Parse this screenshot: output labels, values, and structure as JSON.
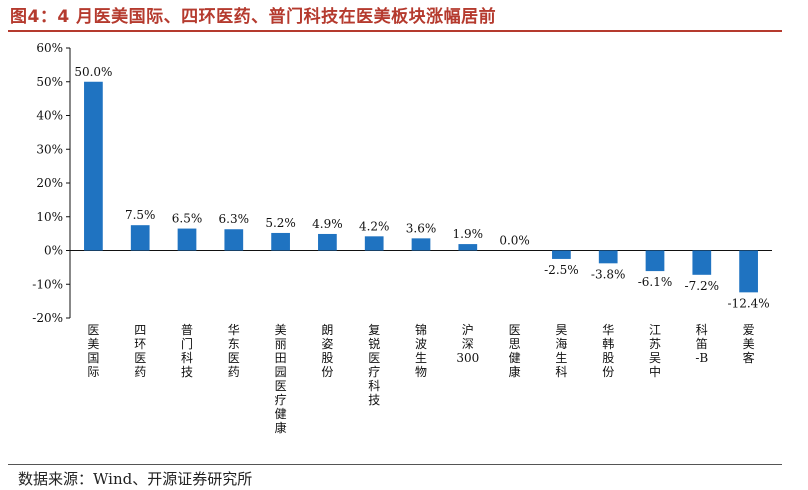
{
  "page": {
    "title": "图4：4 月医美国际、四环医药、普门科技在医美板块涨幅居前",
    "source": "数据来源：Wind、开源证券研究所"
  },
  "chart_data": {
    "type": "bar",
    "title": "图4：4 月医美国际、四环医药、普门科技在医美板块涨幅居前",
    "xlabel": "",
    "ylabel": "",
    "ylim": [
      -20,
      60
    ],
    "yticks": [
      -20,
      -10,
      0,
      10,
      20,
      30,
      40,
      50,
      60
    ],
    "ytick_labels": [
      "-20%",
      "-10%",
      "0%",
      "10%",
      "20%",
      "30%",
      "40%",
      "50%",
      "60%"
    ],
    "categories": [
      "医美国际",
      "四环医药",
      "普门科技",
      "华东医药",
      "美丽田园医疗健康",
      "朗姿股份",
      "复锐医疗科技",
      "锦波生物",
      "沪深300",
      "医思健康",
      "昊海生科",
      "华韩股份",
      "江苏吴中",
      "科笛-B",
      "爱美客"
    ],
    "values": [
      50.0,
      7.5,
      6.5,
      6.3,
      5.2,
      4.9,
      4.2,
      3.6,
      1.9,
      0.0,
      -2.5,
      -3.8,
      -6.1,
      -7.2,
      -12.4
    ],
    "labels": [
      "50.0%",
      "7.5%",
      "6.5%",
      "6.3%",
      "5.2%",
      "4.9%",
      "4.2%",
      "3.6%",
      "1.9%",
      "0.0%",
      "-2.5%",
      "-3.8%",
      "-6.1%",
      "-7.2%",
      "-12.4%"
    ],
    "bar_color": "#1f73c1",
    "legend": "none",
    "grid": false
  }
}
